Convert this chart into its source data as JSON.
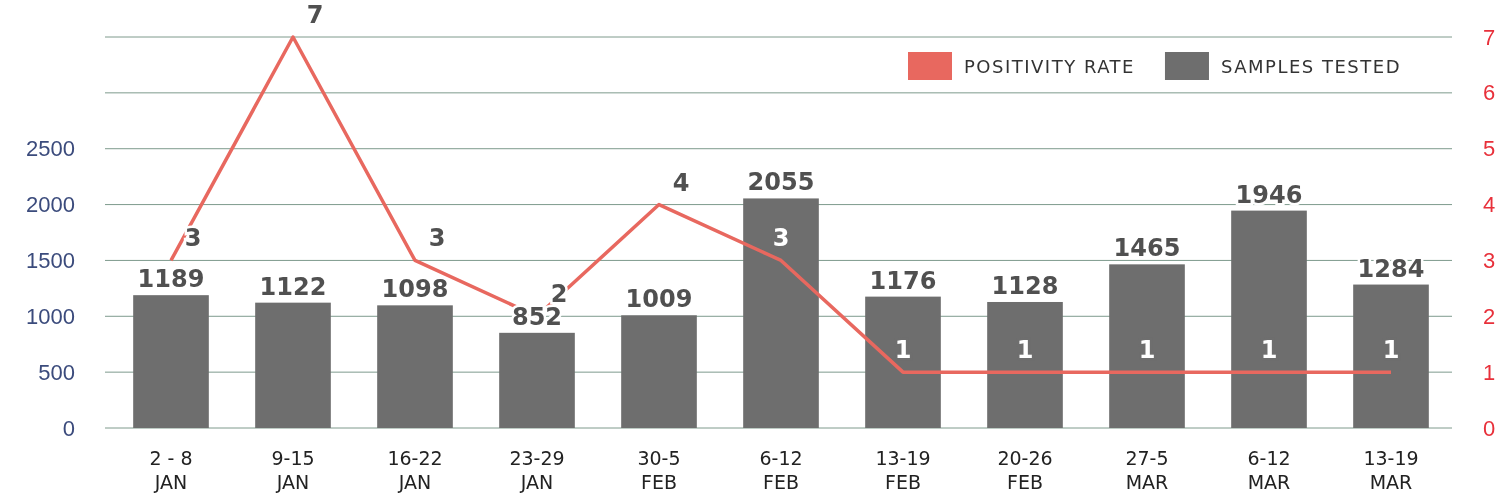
{
  "chart_data": {
    "type": "bar",
    "categories": [
      "2 - 8\nJAN",
      "9-15\nJAN",
      "16-22\nJAN",
      "23-29\nJAN",
      "30-5\nFEB",
      "6-12\nFEB",
      "13-19\nFEB",
      "20-26\nFEB",
      "27-5\nMAR",
      "6-12\nMAR",
      "13-19\nMAR"
    ],
    "series": [
      {
        "name": "SAMPLES TESTED",
        "type": "bar",
        "color": "#6e6e6e",
        "values": [
          1189,
          1122,
          1098,
          852,
          1009,
          2055,
          1176,
          1128,
          1465,
          1946,
          1284
        ]
      },
      {
        "name": "POSITIVITY RATE",
        "type": "line",
        "axis": "y2",
        "color": "#e8685f",
        "values": [
          3,
          7,
          3,
          2,
          4,
          3,
          1,
          1,
          1,
          1,
          1
        ]
      }
    ],
    "ylim": [
      0,
      3500
    ],
    "yticks": [
      0,
      500,
      1000,
      1500,
      2000,
      2500,
      {
        "value": 3000,
        "label": null
      },
      {
        "value": 3500,
        "label": null
      }
    ],
    "y2lim": [
      0,
      7
    ],
    "y2ticks": [
      0,
      1,
      2,
      3,
      4,
      5,
      6,
      7
    ],
    "grid": "y",
    "legend": "top right",
    "data_labels": true,
    "marker": "none",
    "line_style": "solid"
  }
}
